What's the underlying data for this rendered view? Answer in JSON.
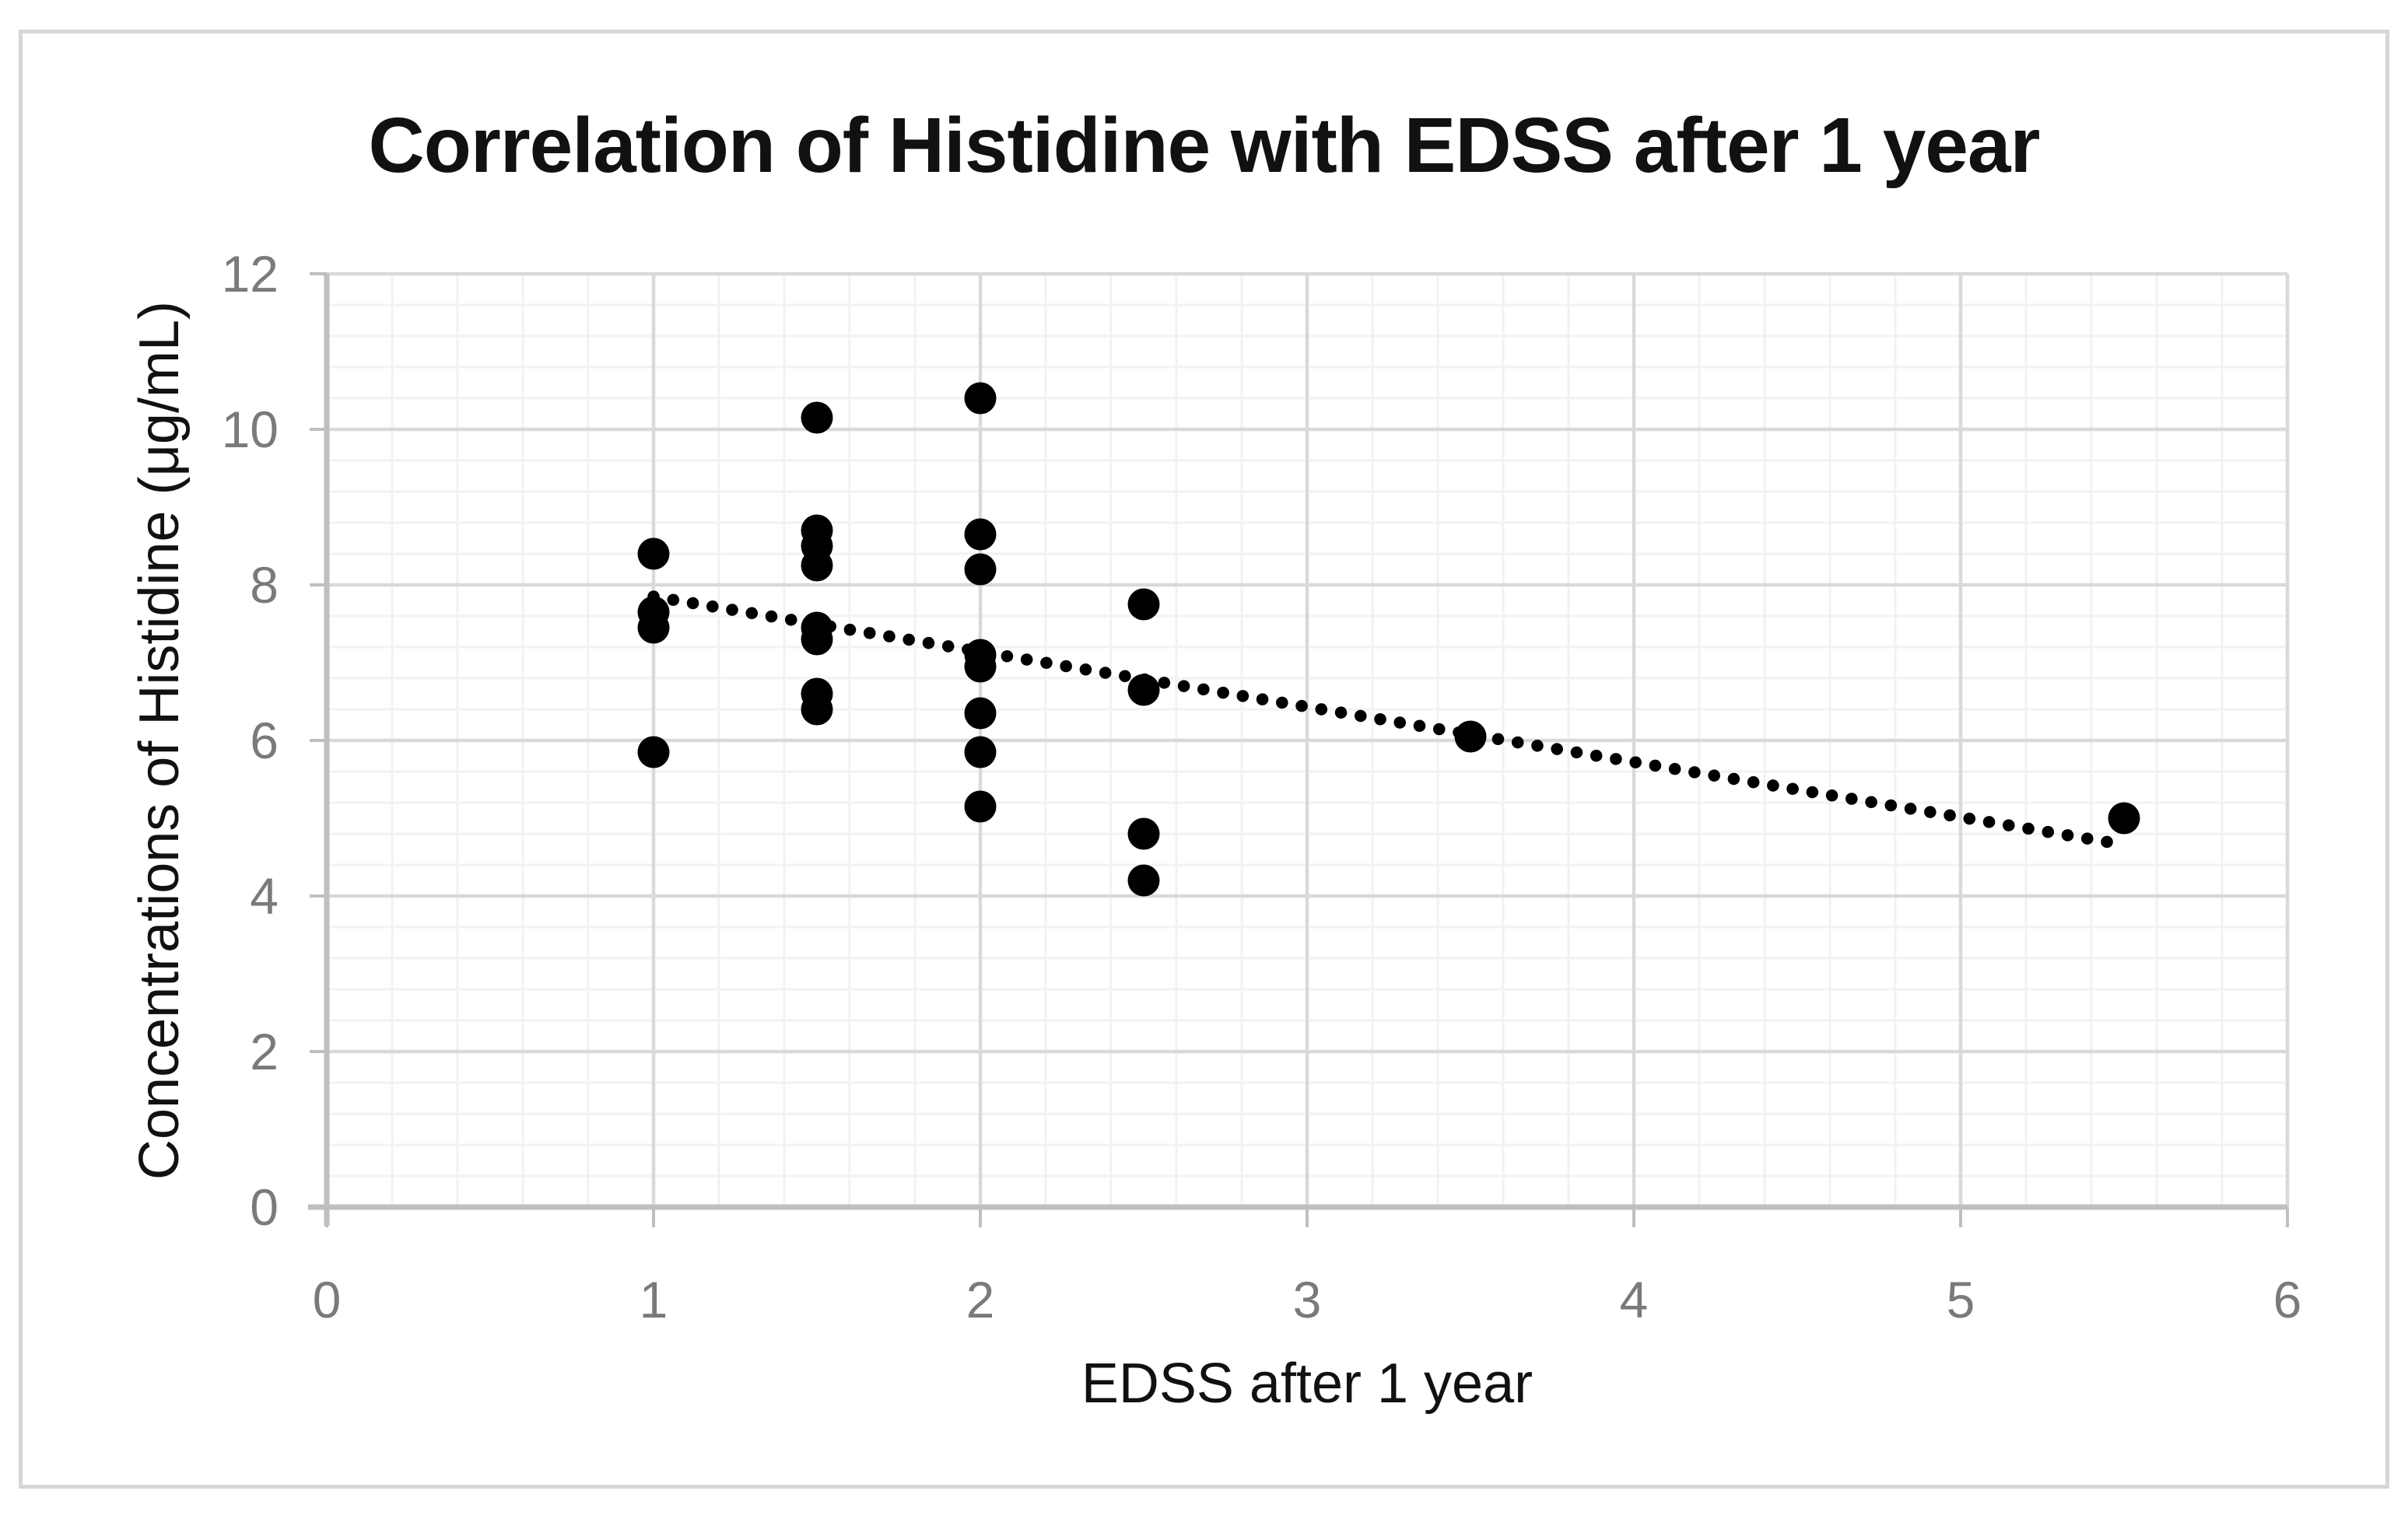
{
  "chart_data": {
    "type": "scatter",
    "title": "Correlation of Histidine with EDSS after 1 year",
    "xlabel": "EDSS after 1 year",
    "ylabel": "Concentrations of Histidine (μg/mL)",
    "xlim": [
      0,
      6
    ],
    "ylim": [
      0,
      12
    ],
    "x_ticks": [
      0,
      1,
      2,
      3,
      4,
      5,
      6
    ],
    "y_ticks": [
      0,
      2,
      4,
      6,
      8,
      10,
      12
    ],
    "x_minor_unit": 0.2,
    "y_minor_unit": 0.4,
    "grid": "major-and-minor",
    "legend": "none",
    "points": [
      [
        1,
        8.4
      ],
      [
        1,
        7.65
      ],
      [
        1,
        7.45
      ],
      [
        1,
        5.85
      ],
      [
        1.5,
        10.15
      ],
      [
        1.5,
        8.7
      ],
      [
        1.5,
        8.5
      ],
      [
        1.5,
        8.25
      ],
      [
        1.5,
        7.45
      ],
      [
        1.5,
        7.3
      ],
      [
        1.5,
        6.6
      ],
      [
        1.5,
        6.4
      ],
      [
        2,
        10.4
      ],
      [
        2,
        8.65
      ],
      [
        2,
        8.2
      ],
      [
        2,
        7.1
      ],
      [
        2,
        6.95
      ],
      [
        2,
        6.35
      ],
      [
        2,
        5.85
      ],
      [
        2,
        5.15
      ],
      [
        2.5,
        7.75
      ],
      [
        2.5,
        6.65
      ],
      [
        2.5,
        4.8
      ],
      [
        2.5,
        4.2
      ],
      [
        3.5,
        6.05
      ],
      [
        5.5,
        5.0
      ]
    ],
    "trendline": {
      "style": "dotted",
      "x1": 1.0,
      "y1": 7.85,
      "x2": 5.47,
      "y2": 4.68
    },
    "colors": {
      "marker": "#000000",
      "trend": "#000000",
      "major_grid": "#d9d9d9",
      "minor_grid": "#f2f2f2",
      "axis": "#bfbfbf",
      "tick_label": "#7a7a7a",
      "text": "#111111",
      "border": "#d6d6d6",
      "background": "#ffffff"
    }
  }
}
